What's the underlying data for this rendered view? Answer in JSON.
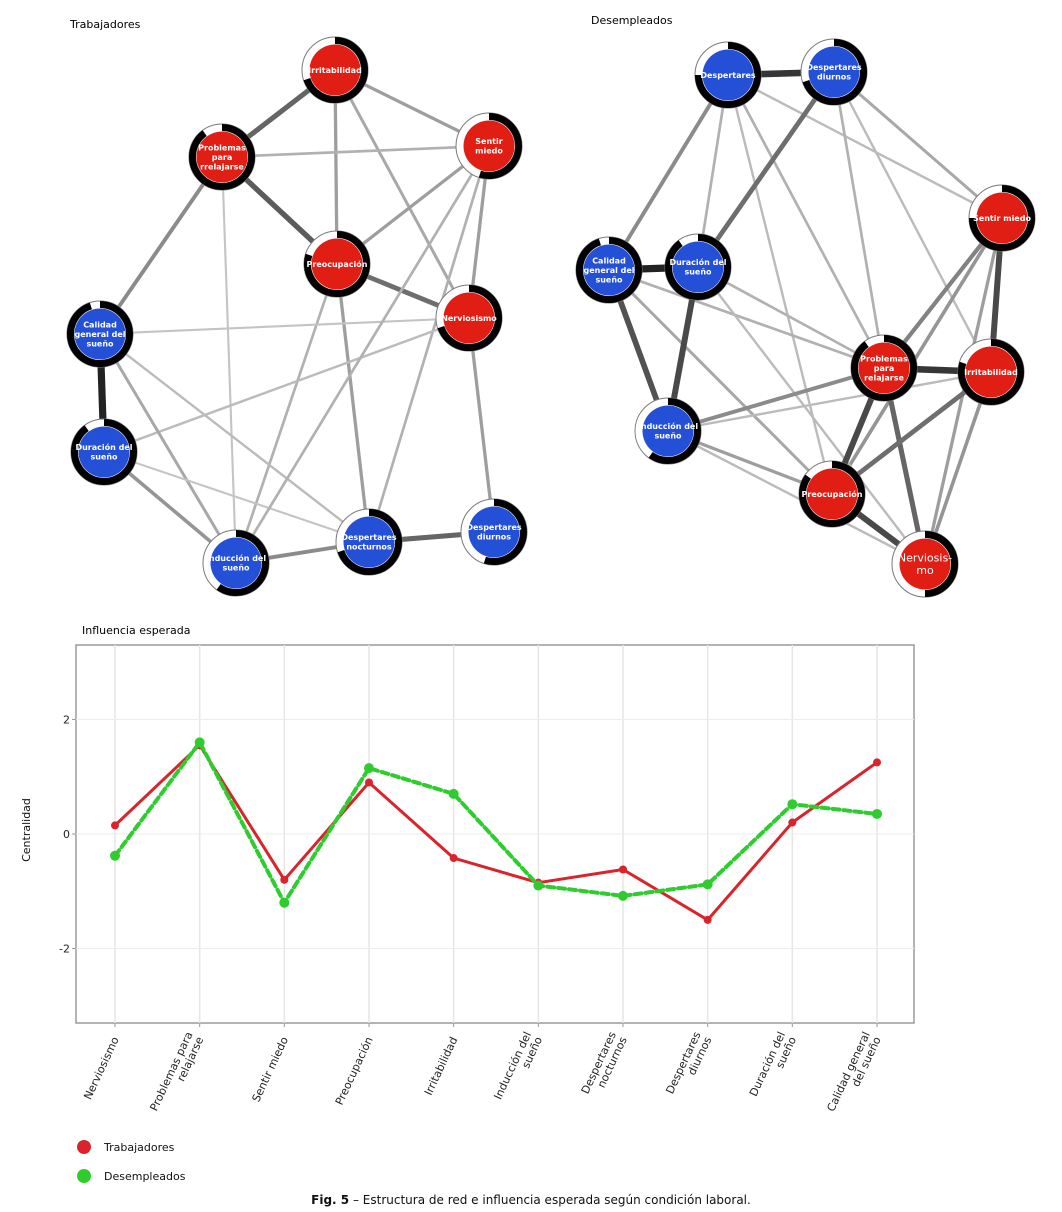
{
  "figure_caption": {
    "label": "Fig. 5",
    "text": " – Estructura de red e influencia esperada según condición laboral."
  },
  "colors": {
    "trabajadores": "#d8242a",
    "desempleados": "#2ecc2e",
    "node_red": "#e01e14",
    "node_blue": "#2450d8"
  },
  "networks": [
    {
      "title": "Trabajadores",
      "nodes": [
        {
          "id": "irr",
          "label": "Irritabilidad",
          "group": "red",
          "ring": 0.7
        },
        {
          "id": "prob",
          "label": "Problemas|para|rrelajarse",
          "group": "red",
          "ring": 0.9
        },
        {
          "id": "miedo",
          "label": "Sentir|miedo",
          "group": "red",
          "ring": 0.55
        },
        {
          "id": "preo",
          "label": "Preocupación",
          "group": "red",
          "ring": 0.8
        },
        {
          "id": "nerv",
          "label": "Nerviosismo",
          "group": "red",
          "ring": 0.7
        },
        {
          "id": "cal",
          "label": "Calidad|general del|sueño",
          "group": "blue",
          "ring": 0.95
        },
        {
          "id": "dur",
          "label": "Duración del|sueño",
          "group": "blue",
          "ring": 0.9
        },
        {
          "id": "ind",
          "label": "Inducción del|sueño",
          "group": "blue",
          "ring": 0.6
        },
        {
          "id": "noct",
          "label": "Despertares|nocturnos",
          "group": "blue",
          "ring": 0.7
        },
        {
          "id": "diur",
          "label": "Despertares|diurnos",
          "group": "blue",
          "ring": 0.55
        }
      ],
      "edges": [
        [
          "irr",
          "prob",
          0.6
        ],
        [
          "irr",
          "miedo",
          0.3
        ],
        [
          "irr",
          "preo",
          0.3
        ],
        [
          "irr",
          "nerv",
          0.25
        ],
        [
          "prob",
          "preo",
          0.65
        ],
        [
          "prob",
          "miedo",
          0.2
        ],
        [
          "prob",
          "cal",
          0.4
        ],
        [
          "prob",
          "ind",
          0.1
        ],
        [
          "miedo",
          "preo",
          0.3
        ],
        [
          "miedo",
          "nerv",
          0.3
        ],
        [
          "miedo",
          "noct",
          0.2
        ],
        [
          "preo",
          "nerv",
          0.55
        ],
        [
          "preo",
          "ind",
          0.2
        ],
        [
          "preo",
          "noct",
          0.3
        ],
        [
          "nerv",
          "dur",
          0.15
        ],
        [
          "nerv",
          "diur",
          0.3
        ],
        [
          "cal",
          "dur",
          0.95
        ],
        [
          "cal",
          "ind",
          0.25
        ],
        [
          "cal",
          "noct",
          0.15
        ],
        [
          "cal",
          "nerv",
          0.1
        ],
        [
          "dur",
          "ind",
          0.35
        ],
        [
          "dur",
          "noct",
          0.1
        ],
        [
          "ind",
          "noct",
          0.4
        ],
        [
          "ind",
          "miedo",
          0.2
        ],
        [
          "noct",
          "diur",
          0.6
        ]
      ]
    },
    {
      "title": "Desempleados",
      "nodes": [
        {
          "id": "desp",
          "label": "Despertares",
          "group": "blue",
          "ring": 0.75
        },
        {
          "id": "diur",
          "label": "Despertares|diurnos",
          "group": "blue",
          "ring": 0.7
        },
        {
          "id": "miedo",
          "label": "Sentir miedo",
          "group": "red",
          "ring": 0.75
        },
        {
          "id": "cal",
          "label": "Calidad|general del|sueño",
          "group": "blue",
          "ring": 0.95
        },
        {
          "id": "dur",
          "label": "Duración del|sueño",
          "group": "blue",
          "ring": 0.9
        },
        {
          "id": "prob",
          "label": "Problemas|para|relajarse",
          "group": "red",
          "ring": 0.9
        },
        {
          "id": "irr",
          "label": "Irritabilidad",
          "group": "red",
          "ring": 0.8
        },
        {
          "id": "ind",
          "label": "Inducción del|sueño",
          "group": "blue",
          "ring": 0.6
        },
        {
          "id": "preo",
          "label": "Preocupación",
          "group": "red",
          "ring": 0.85
        },
        {
          "id": "nerv",
          "label": "Nerviosis-|mo",
          "group": "red",
          "ring": 0.5,
          "big": true
        }
      ],
      "edges": [
        [
          "desp",
          "diur",
          0.85
        ],
        [
          "desp",
          "cal",
          0.4
        ],
        [
          "desp",
          "dur",
          0.2
        ],
        [
          "desp",
          "miedo",
          0.15
        ],
        [
          "desp",
          "prob",
          0.2
        ],
        [
          "desp",
          "preo",
          0.15
        ],
        [
          "diur",
          "dur",
          0.55
        ],
        [
          "diur",
          "miedo",
          0.25
        ],
        [
          "diur",
          "prob",
          0.2
        ],
        [
          "diur",
          "irr",
          0.15
        ],
        [
          "miedo",
          "irr",
          0.75
        ],
        [
          "miedo",
          "prob",
          0.45
        ],
        [
          "miedo",
          "preo",
          0.35
        ],
        [
          "miedo",
          "nerv",
          0.3
        ],
        [
          "cal",
          "dur",
          0.95
        ],
        [
          "cal",
          "ind",
          0.7
        ],
        [
          "cal",
          "prob",
          0.2
        ],
        [
          "cal",
          "preo",
          0.25
        ],
        [
          "dur",
          "ind",
          0.75
        ],
        [
          "dur",
          "prob",
          0.2
        ],
        [
          "dur",
          "nerv",
          0.15
        ],
        [
          "prob",
          "irr",
          0.85
        ],
        [
          "prob",
          "preo",
          0.75
        ],
        [
          "prob",
          "nerv",
          0.6
        ],
        [
          "prob",
          "ind",
          0.4
        ],
        [
          "irr",
          "preo",
          0.55
        ],
        [
          "irr",
          "nerv",
          0.35
        ],
        [
          "irr",
          "ind",
          0.15
        ],
        [
          "ind",
          "preo",
          0.3
        ],
        [
          "ind",
          "nerv",
          0.15
        ],
        [
          "preo",
          "nerv",
          0.75
        ]
      ]
    }
  ],
  "chart_data": {
    "type": "line",
    "title": "Influencia esperada",
    "ylabel": "Centralidad",
    "xlabel": "",
    "ylim": [
      -3.3,
      3.3
    ],
    "yticks": [
      2,
      0,
      -2
    ],
    "ytick_labels": [
      "2",
      "0",
      "-2"
    ],
    "grid": true,
    "legend_position": "bottom-left",
    "categories": [
      "Nerviosismo",
      "Problemas para|relajarse",
      "Sentir miedo",
      "Preocupación",
      "Irritabilidad",
      "Inducción del|sueño",
      "Despertares|nocturnos",
      "Despertares|diurnos",
      "Duración del|sueño",
      "Calidad general|del sueño"
    ],
    "series": [
      {
        "name": "Trabajadores",
        "values": [
          0.15,
          1.55,
          -0.8,
          0.9,
          -0.42,
          -0.85,
          -0.62,
          -1.5,
          0.2,
          1.25
        ]
      },
      {
        "name": "Desempleados",
        "values": [
          -0.38,
          1.6,
          -1.2,
          1.15,
          0.7,
          -0.9,
          -1.08,
          -0.88,
          0.52,
          0.35
        ]
      }
    ]
  }
}
